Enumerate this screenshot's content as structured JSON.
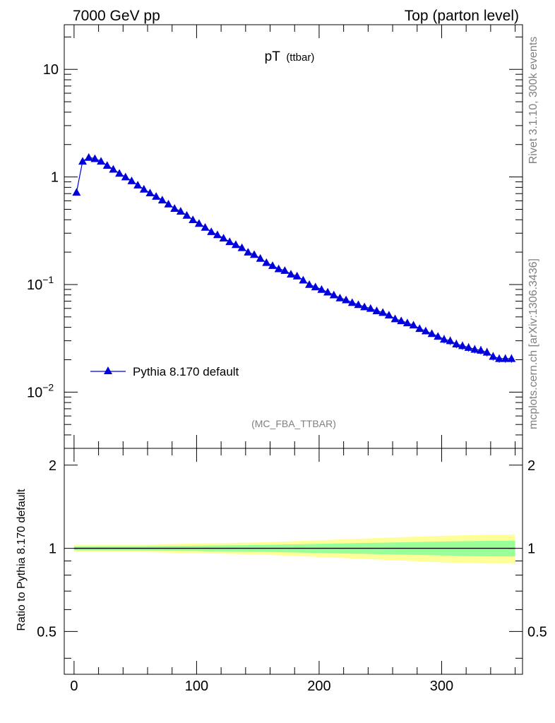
{
  "header": {
    "left": "7000 GeV pp",
    "right": "Top (parton level)"
  },
  "side": {
    "rivet": "Rivet 3.1.10,  300k events",
    "mcplots": "mcplots.cern.ch [arXiv:1306.3436]"
  },
  "chart_data": [
    {
      "type": "line",
      "title_main": "pT",
      "title_sub": "(ttbar)",
      "analysis": "(MC_FBA_TTBAR)",
      "legend": {
        "label": "Pythia 8.170 default",
        "position": "bottom-left"
      },
      "xlabel": "",
      "ylabel": "",
      "xlim": [
        -8,
        366
      ],
      "ylog": true,
      "ylim": [
        0.003,
        26
      ],
      "yticks": [
        {
          "value": 10,
          "base": "10",
          "exp": ""
        },
        {
          "value": 1,
          "base": "1",
          "exp": ""
        },
        {
          "value": 0.1,
          "base": "10",
          "exp": "−1"
        },
        {
          "value": 0.01,
          "base": "10",
          "exp": "−2"
        }
      ],
      "color": "#0000dd",
      "marker": "triangle-up",
      "series": [
        {
          "name": "Pythia 8.170 default",
          "x": [
            2,
            7,
            12,
            17,
            22,
            27,
            32,
            37,
            42,
            47,
            52,
            57,
            62,
            67,
            72,
            77,
            82,
            87,
            92,
            97,
            102,
            107,
            112,
            117,
            122,
            127,
            132,
            137,
            142,
            147,
            152,
            157,
            162,
            167,
            172,
            177,
            182,
            187,
            192,
            197,
            202,
            207,
            212,
            217,
            222,
            227,
            232,
            237,
            242,
            247,
            252,
            257,
            262,
            267,
            272,
            277,
            282,
            287,
            292,
            297,
            302,
            307,
            312,
            317,
            322,
            327,
            332,
            337,
            342,
            347,
            352,
            357
          ],
          "y": [
            0.72,
            1.4,
            1.52,
            1.48,
            1.4,
            1.28,
            1.18,
            1.08,
            1.0,
            0.92,
            0.84,
            0.77,
            0.71,
            0.66,
            0.61,
            0.56,
            0.51,
            0.48,
            0.44,
            0.4,
            0.37,
            0.34,
            0.31,
            0.29,
            0.27,
            0.25,
            0.235,
            0.22,
            0.2,
            0.19,
            0.175,
            0.16,
            0.15,
            0.14,
            0.135,
            0.125,
            0.12,
            0.11,
            0.1,
            0.095,
            0.09,
            0.085,
            0.08,
            0.075,
            0.072,
            0.068,
            0.065,
            0.062,
            0.06,
            0.057,
            0.055,
            0.052,
            0.048,
            0.046,
            0.044,
            0.042,
            0.039,
            0.037,
            0.035,
            0.033,
            0.031,
            0.03,
            0.028,
            0.027,
            0.026,
            0.025,
            0.0245,
            0.0235,
            0.0215,
            0.0205,
            0.0205,
            0.0205
          ]
        }
      ]
    },
    {
      "type": "area",
      "ylabel": "Ratio to Pythia 8.170 default",
      "xlim": [
        -8,
        366
      ],
      "ylim": [
        0.35,
        2.3
      ],
      "xticks": [
        0,
        100,
        200,
        300
      ],
      "yticks": [
        0.5,
        1,
        2
      ],
      "reference": 1,
      "bands": [
        {
          "name": "outer",
          "color": "#ffff99",
          "x": [
            0,
            50,
            100,
            150,
            200,
            250,
            300,
            340,
            360
          ],
          "lo": [
            0.972,
            0.97,
            0.96,
            0.95,
            0.93,
            0.91,
            0.89,
            0.88,
            0.88
          ],
          "hi": [
            1.028,
            1.03,
            1.04,
            1.05,
            1.07,
            1.09,
            1.11,
            1.12,
            1.12
          ]
        },
        {
          "name": "inner",
          "color": "#99ff99",
          "x": [
            0,
            50,
            100,
            150,
            200,
            250,
            300,
            340,
            360
          ],
          "lo": [
            0.985,
            0.983,
            0.978,
            0.972,
            0.962,
            0.952,
            0.942,
            0.935,
            0.935
          ],
          "hi": [
            1.015,
            1.017,
            1.022,
            1.028,
            1.038,
            1.048,
            1.058,
            1.065,
            1.065
          ]
        }
      ]
    }
  ]
}
